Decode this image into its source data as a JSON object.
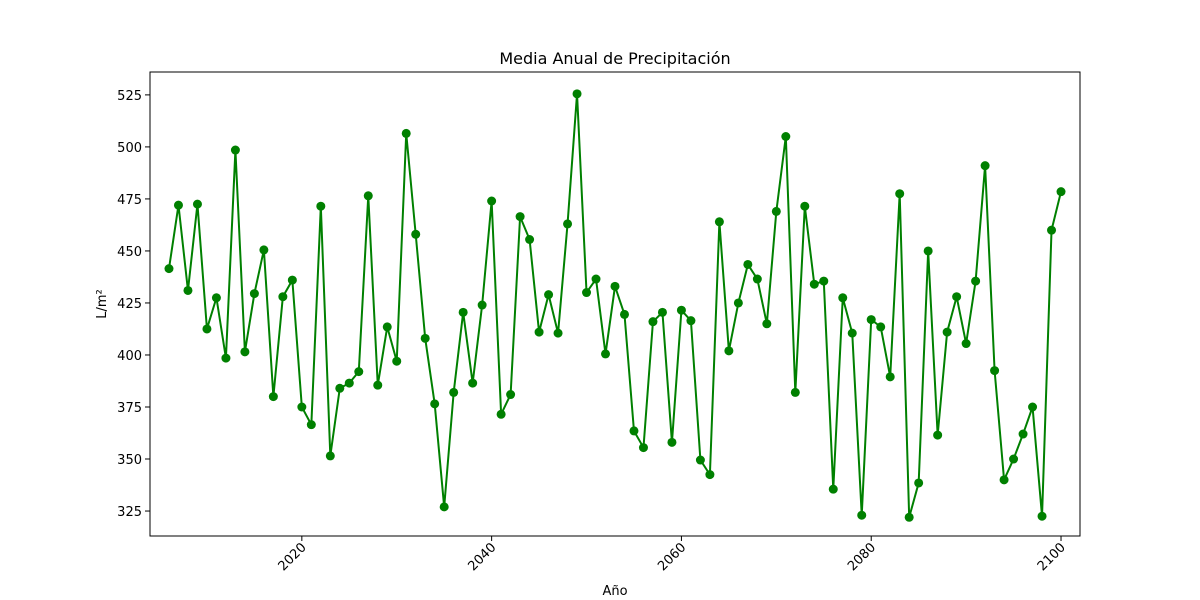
{
  "chart_data": {
    "type": "line",
    "title": "Media Anual de Precipitación",
    "xlabel": "Año",
    "ylabel": "L/m²",
    "color": "#008000",
    "marker": "circle",
    "grid": false,
    "legend": "none",
    "xlim": [
      2004,
      2102
    ],
    "ylim": [
      313,
      536
    ],
    "xticks": [
      2020,
      2040,
      2060,
      2080,
      2100
    ],
    "yticks": [
      325,
      350,
      375,
      400,
      425,
      450,
      475,
      500,
      525
    ],
    "x": [
      2006,
      2007,
      2008,
      2009,
      2010,
      2011,
      2012,
      2013,
      2014,
      2015,
      2016,
      2017,
      2018,
      2019,
      2020,
      2021,
      2022,
      2023,
      2024,
      2025,
      2026,
      2027,
      2028,
      2029,
      2030,
      2031,
      2032,
      2033,
      2034,
      2035,
      2036,
      2037,
      2038,
      2039,
      2040,
      2041,
      2042,
      2043,
      2044,
      2045,
      2046,
      2047,
      2048,
      2049,
      2050,
      2051,
      2052,
      2053,
      2054,
      2055,
      2056,
      2057,
      2058,
      2059,
      2060,
      2061,
      2062,
      2063,
      2064,
      2065,
      2066,
      2067,
      2068,
      2069,
      2070,
      2071,
      2072,
      2073,
      2074,
      2075,
      2076,
      2077,
      2078,
      2079,
      2080,
      2081,
      2082,
      2083,
      2084,
      2085,
      2086,
      2087,
      2088,
      2089,
      2090,
      2091,
      2092,
      2093,
      2094,
      2095,
      2096,
      2097,
      2098,
      2099,
      2100
    ],
    "series": [
      {
        "values": [
          441.5,
          472,
          431,
          472.5,
          412.5,
          427.5,
          398.5,
          498.5,
          401.5,
          429.5,
          450.5,
          380,
          428,
          436,
          375,
          366.5,
          471.5,
          351.5,
          384,
          386.5,
          392,
          476.5,
          385.5,
          413.5,
          397,
          506.5,
          458,
          408,
          376.5,
          327,
          382,
          420.5,
          386.5,
          424,
          474,
          371.5,
          381,
          466.5,
          455.5,
          411,
          429,
          410.5,
          463,
          525.5,
          430,
          436.5,
          400.5,
          433,
          419.5,
          363.5,
          355.5,
          416,
          420.5,
          358,
          421.5,
          416.5,
          349.5,
          342.5,
          464,
          402,
          425,
          443.5,
          436.5,
          415,
          469,
          505,
          382,
          471.5,
          434,
          435.5,
          335.5,
          427.5,
          410.5,
          323,
          417,
          413.5,
          389.5,
          477.5,
          322,
          338.5,
          450,
          361.5,
          411,
          428,
          405.5,
          435.5,
          491,
          392.5,
          340,
          350,
          362,
          375,
          322.5,
          460,
          478.5
        ]
      }
    ]
  }
}
